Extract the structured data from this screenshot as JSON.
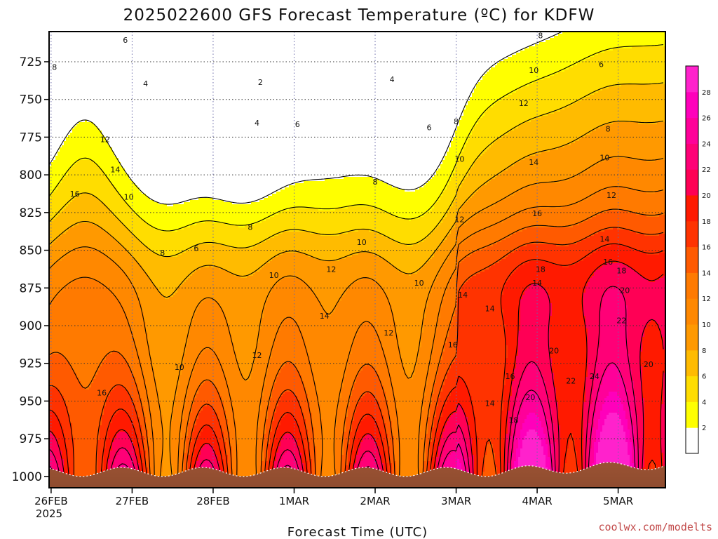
{
  "chart_data": {
    "type": "heatmap",
    "title": "2025022600 GFS Forecast Temperature (ºC) for KDFW",
    "xlabel": "Forecast Time (UTC)",
    "ylabel": "",
    "credit": "coolwx.com/modelts",
    "x_ticks": [
      "26FEB",
      "27FEB",
      "28FEB",
      "1MAR",
      "2MAR",
      "3MAR",
      "4MAR",
      "5MAR"
    ],
    "x_tick_extra": "2025",
    "y_ticks": [
      725,
      750,
      775,
      800,
      825,
      850,
      875,
      900,
      925,
      950,
      975,
      1000
    ],
    "ylim": [
      1000,
      705
    ],
    "x_hours": [
      0,
      24,
      48,
      72,
      96,
      120,
      144,
      168
    ],
    "colorbar": {
      "ticks": [
        2,
        4,
        6,
        8,
        10,
        12,
        14,
        16,
        18,
        20,
        22,
        24,
        26,
        28
      ],
      "colors": [
        "#ffffff",
        "#ffff00",
        "#ffdd00",
        "#ffbb00",
        "#ff9900",
        "#ff8800",
        "#ff7a00",
        "#ff5a00",
        "#ff3300",
        "#ff1a00",
        "#ff0055",
        "#ff0077",
        "#ff0099",
        "#ff00bb",
        "#ff22cc"
      ]
    },
    "ground_color": "#9a5233",
    "contour_labels": [
      {
        "v": "6",
        "t": 22,
        "p": 711
      },
      {
        "v": "8",
        "t": 1,
        "p": 729
      },
      {
        "v": "4",
        "t": 28,
        "p": 740
      },
      {
        "v": "2",
        "t": 62,
        "p": 739
      },
      {
        "v": "4",
        "t": 101,
        "p": 737
      },
      {
        "v": "8",
        "t": 145,
        "p": 708
      },
      {
        "v": "10",
        "t": 143,
        "p": 731
      },
      {
        "v": "6",
        "t": 163,
        "p": 727
      },
      {
        "v": "12",
        "t": 16,
        "p": 777
      },
      {
        "v": "4",
        "t": 61,
        "p": 766
      },
      {
        "v": "6",
        "t": 73,
        "p": 767
      },
      {
        "v": "6",
        "t": 112,
        "p": 769
      },
      {
        "v": "8",
        "t": 120,
        "p": 765
      },
      {
        "v": "12",
        "t": 140,
        "p": 753
      },
      {
        "v": "8",
        "t": 165,
        "p": 770
      },
      {
        "v": "14",
        "t": 19,
        "p": 797
      },
      {
        "v": "16",
        "t": 7,
        "p": 813
      },
      {
        "v": "10",
        "t": 23,
        "p": 815
      },
      {
        "v": "8",
        "t": 96,
        "p": 805
      },
      {
        "v": "10",
        "t": 121,
        "p": 790
      },
      {
        "v": "14",
        "t": 143,
        "p": 792
      },
      {
        "v": "10",
        "t": 164,
        "p": 789
      },
      {
        "v": "12",
        "t": 166,
        "p": 814
      },
      {
        "v": "8",
        "t": 59,
        "p": 835
      },
      {
        "v": "6",
        "t": 43,
        "p": 849
      },
      {
        "v": "8",
        "t": 33,
        "p": 852
      },
      {
        "v": "10",
        "t": 92,
        "p": 845
      },
      {
        "v": "12",
        "t": 121,
        "p": 830
      },
      {
        "v": "16",
        "t": 144,
        "p": 826
      },
      {
        "v": "14",
        "t": 164,
        "p": 843
      },
      {
        "v": "16",
        "t": 165,
        "p": 858
      },
      {
        "v": "18",
        "t": 169,
        "p": 864
      },
      {
        "v": "10",
        "t": 66,
        "p": 867
      },
      {
        "v": "12",
        "t": 83,
        "p": 863
      },
      {
        "v": "10",
        "t": 109,
        "p": 872
      },
      {
        "v": "18",
        "t": 145,
        "p": 863
      },
      {
        "v": "14",
        "t": 144,
        "p": 872
      },
      {
        "v": "14",
        "t": 122,
        "p": 880
      },
      {
        "v": "20",
        "t": 170,
        "p": 877
      },
      {
        "v": "14",
        "t": 130,
        "p": 889
      },
      {
        "v": "14",
        "t": 81,
        "p": 894
      },
      {
        "v": "12",
        "t": 100,
        "p": 905
      },
      {
        "v": "22",
        "t": 169,
        "p": 897
      },
      {
        "v": "16",
        "t": 119,
        "p": 913
      },
      {
        "v": "12",
        "t": 61,
        "p": 920
      },
      {
        "v": "10",
        "t": 38,
        "p": 928
      },
      {
        "v": "20",
        "t": 149,
        "p": 917
      },
      {
        "v": "22",
        "t": 154,
        "p": 937
      },
      {
        "v": "24",
        "t": 161,
        "p": 934
      },
      {
        "v": "20",
        "t": 177,
        "p": 926
      },
      {
        "v": "16",
        "t": 136,
        "p": 934
      },
      {
        "v": "20",
        "t": 142,
        "p": 948
      },
      {
        "v": "16",
        "t": 15,
        "p": 945
      },
      {
        "v": "14",
        "t": 130,
        "p": 952
      },
      {
        "v": "18",
        "t": 137,
        "p": 963
      }
    ]
  }
}
